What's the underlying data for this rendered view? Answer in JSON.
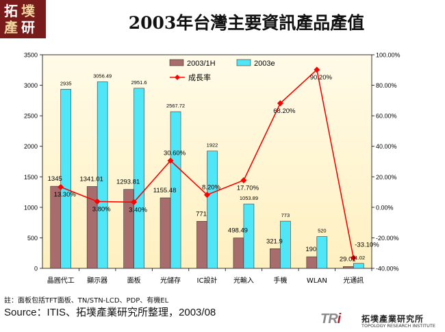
{
  "logo": {
    "chars": [
      "拓",
      "墣",
      "產",
      "研"
    ]
  },
  "title": "2003年台灣主要資訊產品產值",
  "note": "註：面板包括TFT面板、TN/STN-LCD、PDP、有機EL",
  "source": "Source：ITIS、拓墣產業研究所整理，2003/08",
  "footer": {
    "mark_a": "TR",
    "mark_b": "i",
    "name": "拓墣產業研究所",
    "name_en": "TOPOLOGY RESEARCH INSTITUTE"
  },
  "colors": {
    "bar_1h": "#a86c6c",
    "bar_2003e": "#4fe7f7",
    "growth_line": "#ff0000",
    "plot_bg_top": "#fffbe8",
    "plot_bg_bottom": "#fff0c0",
    "logo_bg": "#7a1b1b"
  },
  "chart_data": {
    "type": "bar",
    "categories": [
      "晶圓代工",
      "顯示器",
      "面板",
      "光儲存",
      "IC設計",
      "光輸入",
      "手機",
      "WLAN",
      "光通訊"
    ],
    "series": [
      {
        "name": "2003/1H",
        "kind": "bar",
        "axis": "left",
        "values": [
          1345,
          1341.01,
          1293.81,
          1155.48,
          771,
          498.49,
          321.9,
          190,
          29.01
        ],
        "labels": [
          "1345",
          "1341.01",
          "1293.81",
          "1155.48",
          "771",
          "498.49",
          "321.9",
          "190",
          "29.01"
        ]
      },
      {
        "name": "2003e",
        "kind": "bar",
        "axis": "left",
        "values": [
          2935,
          3056.49,
          2951.6,
          2567.72,
          1922,
          1053.89,
          773,
          520,
          81.02
        ],
        "labels": [
          "2935",
          "3056.49",
          "2951.6",
          "2567.72",
          "1922",
          "1053.89",
          "773",
          "520",
          "81.02"
        ]
      },
      {
        "name": "成長率",
        "kind": "line",
        "axis": "right",
        "values": [
          13.3,
          3.8,
          3.4,
          30.6,
          8.2,
          17.7,
          68.2,
          90.2,
          -33.1
        ],
        "labels": [
          "13.30%",
          "3.80%",
          "3.40%",
          "30.60%",
          "8.20%",
          "17.70%",
          "68.20%",
          "90.20%",
          "-33.10%"
        ]
      }
    ],
    "ylim": [
      0,
      3500
    ],
    "y_ticks": [
      "0",
      "500",
      "1000",
      "1500",
      "2000",
      "2500",
      "3000",
      "3500"
    ],
    "y2lim": [
      -40,
      100
    ],
    "y2_ticks": [
      "-40.00%",
      "-20.00%",
      "0.00%",
      "20.00%",
      "40.00%",
      "60.00%",
      "80.00%",
      "100.00%"
    ],
    "legend_position": "top-center",
    "grid": false
  }
}
